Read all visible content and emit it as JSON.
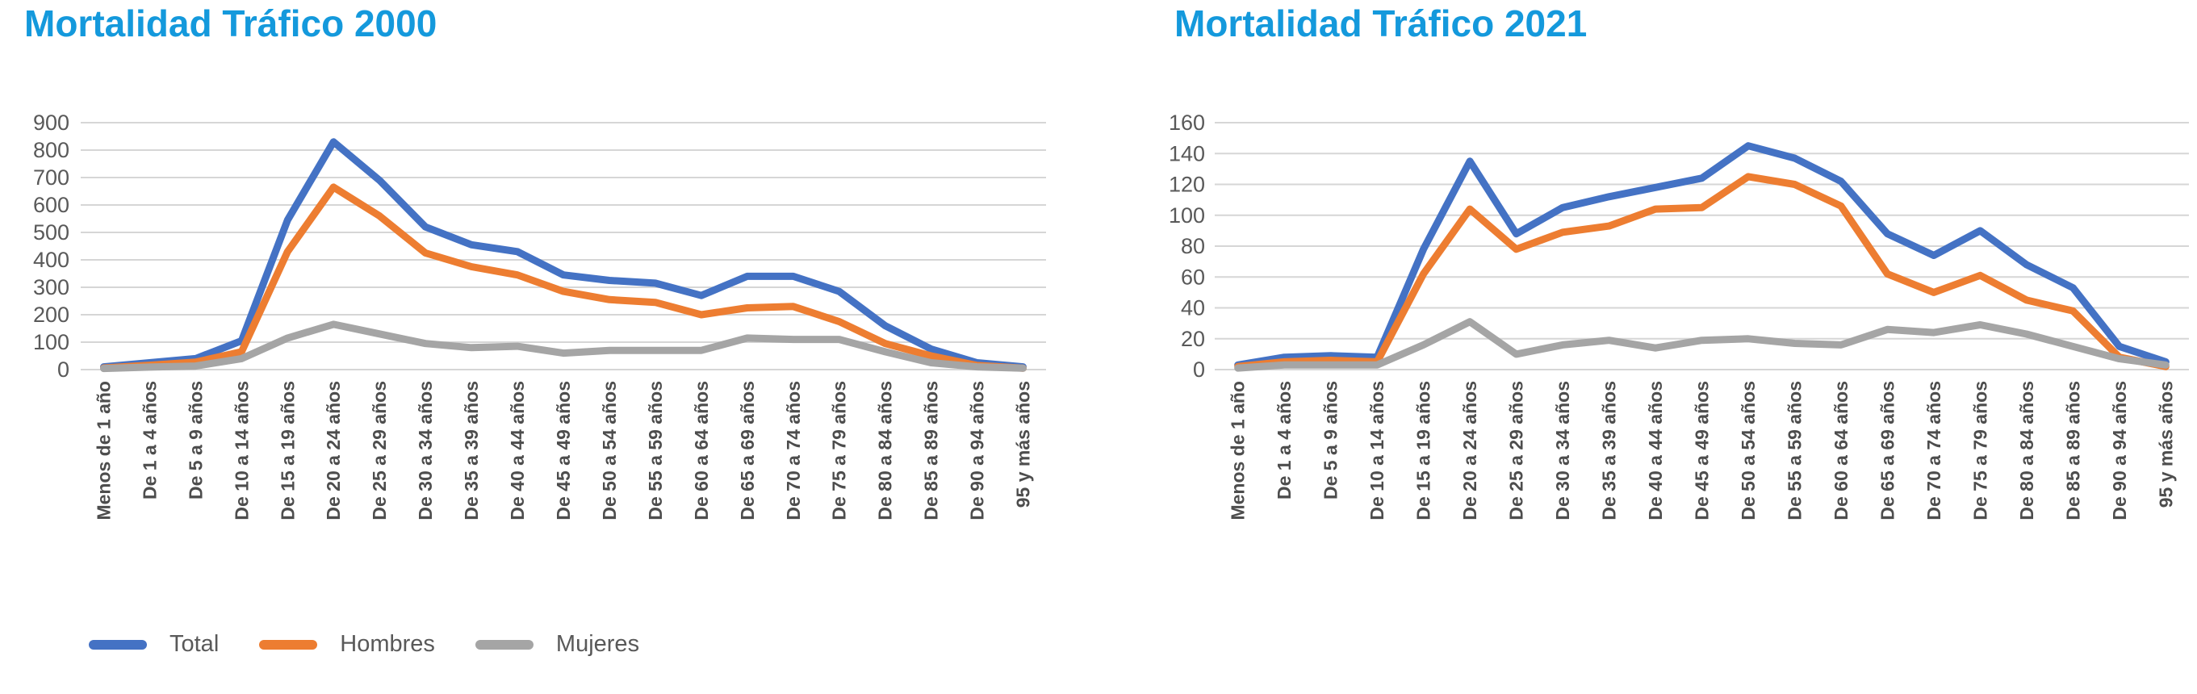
{
  "colors": {
    "title": "#1499DC",
    "total": "#4472C4",
    "hombres": "#ED7D31",
    "mujeres": "#A5A5A5",
    "gridline": "#D6D6D6",
    "axis_text": "#595959"
  },
  "chart_data": [
    {
      "type": "line",
      "title": "Mortalidad Tráfico 2000",
      "xlabel": "",
      "ylabel": "",
      "ylim": [
        0,
        900
      ],
      "y_ticks": [
        0,
        100,
        200,
        300,
        400,
        500,
        600,
        700,
        800,
        900
      ],
      "grid": "horizontal",
      "legend_position": "bottom-left",
      "categories": [
        "Menos de 1 año",
        "De 1 a 4 años",
        "De 5 a 9 años",
        "De 10 a 14 años",
        "De 15 a 19 años",
        "De 20 a 24 años",
        "De 25 a 29 años",
        "De 30 a 34 años",
        "De 35 a 39 años",
        "De 40 a 44 años",
        "De 45 a 49 años",
        "De 50 a 54 años",
        "De 55 a 59 años",
        "De 60 a 64 años",
        "De 65 a 69 años",
        "De 70 a 74 años",
        "De 75 a 79 años",
        "De 80 a 84 años",
        "De 85 a 89 años",
        "De 90 a 94 años",
        "95 y más años"
      ],
      "series": [
        {
          "name": "Total",
          "color": "#4472C4",
          "values": [
            10,
            25,
            40,
            105,
            545,
            830,
            690,
            520,
            455,
            430,
            345,
            325,
            315,
            270,
            340,
            340,
            285,
            160,
            75,
            25,
            10
          ]
        },
        {
          "name": "Hombres",
          "color": "#ED7D31",
          "values": [
            6,
            16,
            27,
            65,
            430,
            665,
            560,
            425,
            375,
            345,
            285,
            255,
            245,
            200,
            225,
            230,
            175,
            95,
            50,
            15,
            5
          ]
        },
        {
          "name": "Mujeres",
          "color": "#A5A5A5",
          "values": [
            4,
            9,
            13,
            40,
            115,
            165,
            130,
            95,
            80,
            85,
            60,
            70,
            70,
            70,
            115,
            110,
            110,
            65,
            25,
            10,
            5
          ]
        }
      ]
    },
    {
      "type": "line",
      "title": "Mortalidad Tráfico 2021",
      "xlabel": "",
      "ylabel": "",
      "ylim": [
        0,
        160
      ],
      "y_ticks": [
        0,
        20,
        40,
        60,
        80,
        100,
        120,
        140,
        160
      ],
      "grid": "horizontal",
      "legend_position": "none",
      "categories": [
        "Menos de 1 año",
        "De 1 a 4 años",
        "De 5 a 9 años",
        "De 10 a 14 años",
        "De 15 a 19 años",
        "De 20 a 24 años",
        "De 25 a 29 años",
        "De 30 a 34 años",
        "De 35 a 39 años",
        "De 40 a 44 años",
        "De 45 a 49 años",
        "De 50 a 54 años",
        "De 55 a 59 años",
        "De 60 a 64 años",
        "De 65 a 69 años",
        "De 70 a 74 años",
        "De 75 a 79 años",
        "De 80 a 84 años",
        "De 85 a 89 años",
        "De 90 a 94 años",
        "95 y más años"
      ],
      "series": [
        {
          "name": "Total",
          "color": "#4472C4",
          "values": [
            3,
            8,
            9,
            8,
            78,
            135,
            88,
            105,
            112,
            118,
            124,
            145,
            137,
            122,
            88,
            74,
            90,
            68,
            53,
            15,
            5
          ]
        },
        {
          "name": "Hombres",
          "color": "#ED7D31",
          "values": [
            2,
            5,
            6,
            5,
            62,
            104,
            78,
            89,
            93,
            104,
            105,
            125,
            120,
            106,
            62,
            50,
            61,
            45,
            38,
            8,
            2
          ]
        },
        {
          "name": "Mujeres",
          "color": "#A5A5A5",
          "values": [
            1,
            3,
            3,
            3,
            16,
            31,
            10,
            16,
            19,
            14,
            19,
            20,
            17,
            16,
            26,
            24,
            29,
            23,
            15,
            7,
            3
          ]
        }
      ]
    }
  ],
  "legend": {
    "items": [
      {
        "label": "Total",
        "color": "#4472C4"
      },
      {
        "label": "Hombres",
        "color": "#ED7D31"
      },
      {
        "label": "Mujeres",
        "color": "#A5A5A5"
      }
    ]
  }
}
